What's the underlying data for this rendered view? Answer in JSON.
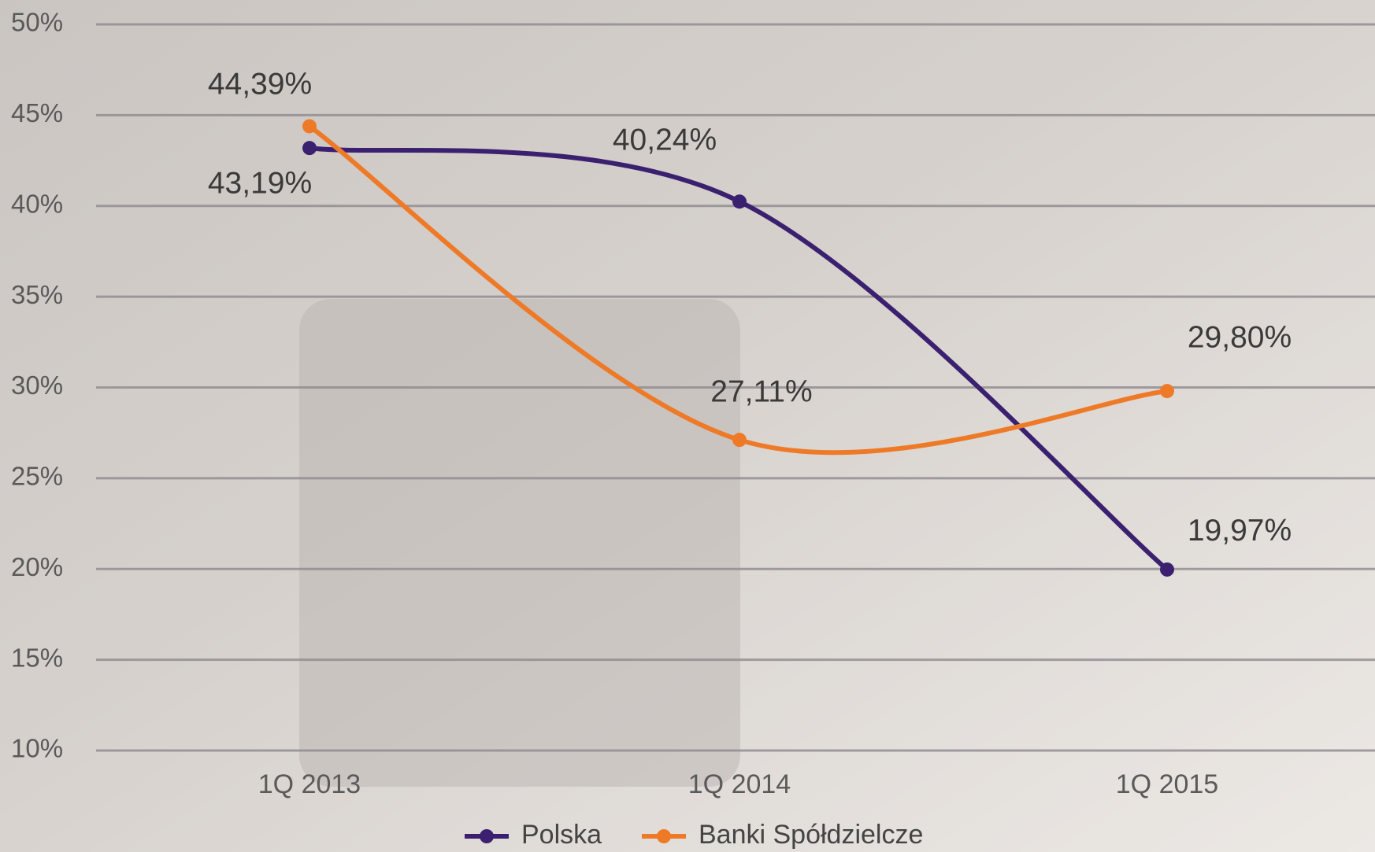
{
  "chart_data": {
    "type": "line",
    "categories": [
      "1Q 2013",
      "1Q 2014",
      "1Q 2015"
    ],
    "series": [
      {
        "name": "Polska",
        "color": "#3b2070",
        "values": [
          43.19,
          40.24,
          19.97
        ],
        "value_labels": [
          "43,19%",
          "40,24%",
          "19,97%"
        ]
      },
      {
        "name": "Banki Spółdzielcze",
        "color": "#ee7a28",
        "values": [
          44.39,
          27.11,
          29.8
        ],
        "value_labels": [
          "44,39%",
          "27,11%",
          "29,80%"
        ]
      }
    ],
    "ylim": [
      10,
      50
    ],
    "yticks": [
      {
        "value": 10,
        "label": "10%"
      },
      {
        "value": 15,
        "label": "15%"
      },
      {
        "value": 20,
        "label": "20%"
      },
      {
        "value": 25,
        "label": "25%"
      },
      {
        "value": 30,
        "label": "30%"
      },
      {
        "value": 35,
        "label": "35%"
      },
      {
        "value": 40,
        "label": "40%"
      },
      {
        "value": 45,
        "label": "45%"
      },
      {
        "value": 50,
        "label": "50%"
      }
    ],
    "grid": true,
    "smooth": true,
    "legend": "bottom"
  }
}
